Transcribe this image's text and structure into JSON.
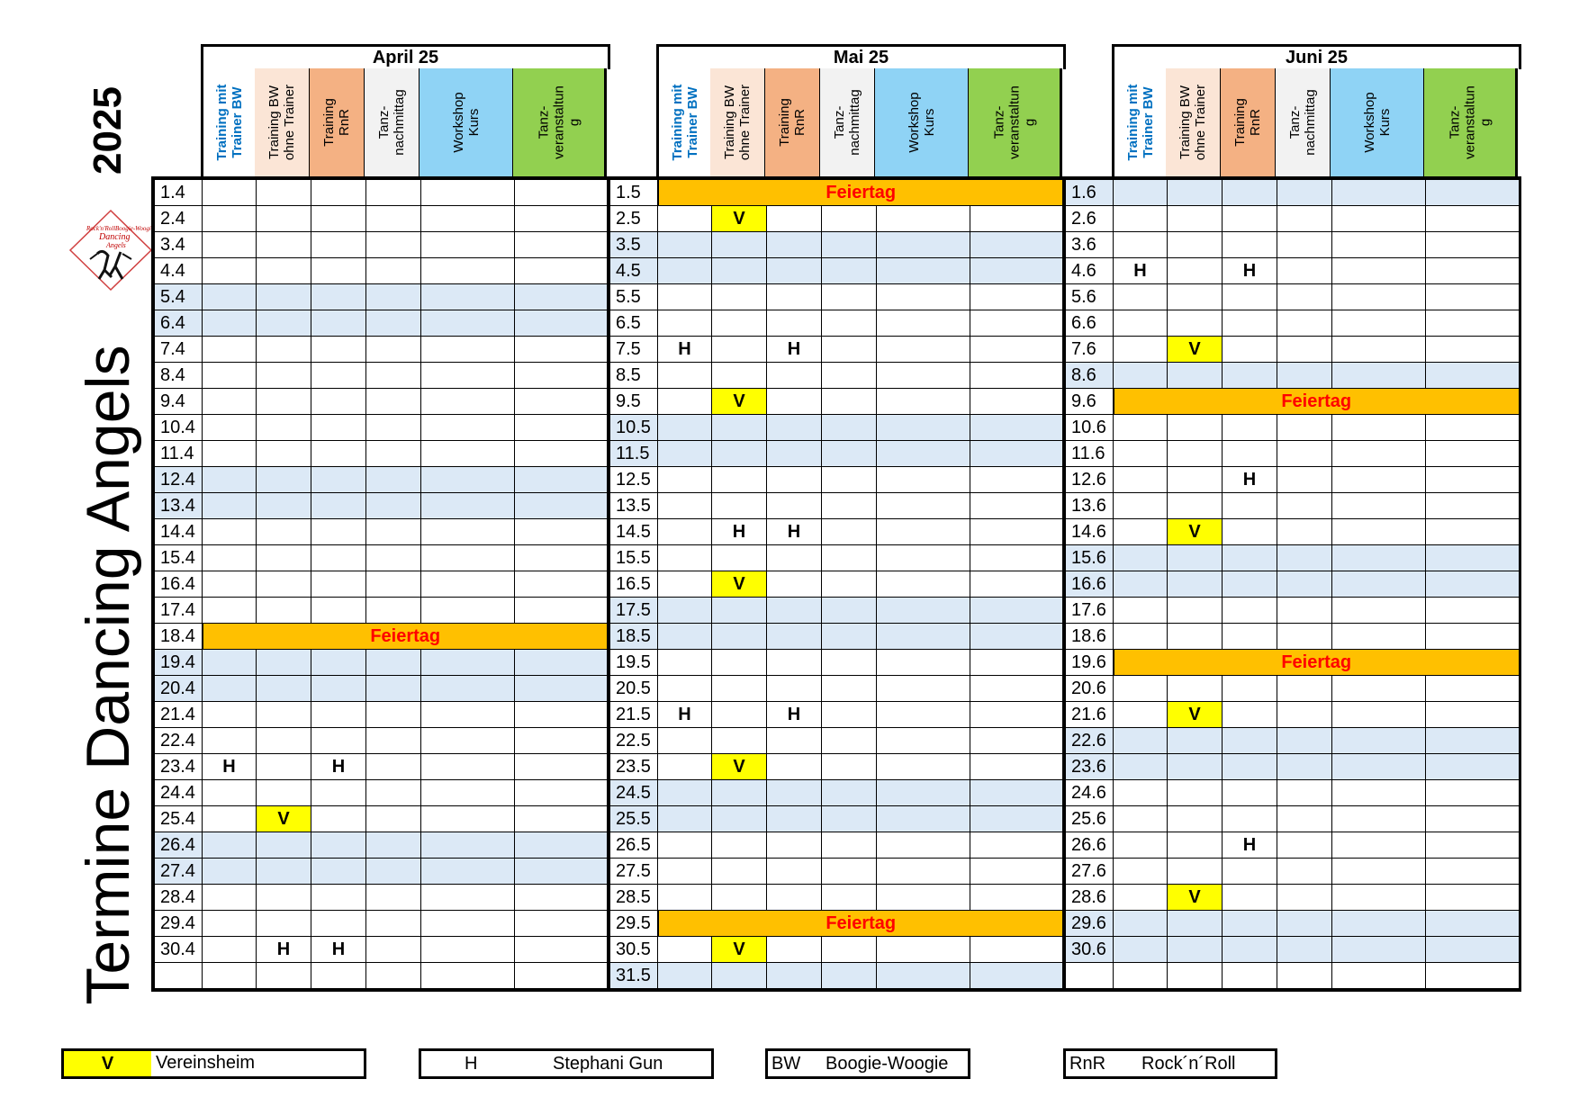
{
  "year": "2025",
  "title": "Termine Dancing Angels",
  "logo": {
    "lines": [
      "Rock'n'Roll",
      "Boogie-Woogie",
      "Dancing",
      "Angels"
    ]
  },
  "columns": [
    {
      "label": "Training mit\nTrainer BW",
      "bg": "#ffffff",
      "color": "#0070c0",
      "bold": true
    },
    {
      "label": "Training BW\nohne Trainer",
      "bg": "#fbe5d6",
      "color": "#000000",
      "bold": false
    },
    {
      "label": "Training\nRnR",
      "bg": "#f4b183",
      "color": "#000000",
      "bold": false
    },
    {
      "label": "Tanz-\nnachmittag",
      "bg": "#f2f2f2",
      "color": "#000000",
      "bold": false
    },
    {
      "label": "Workshop\nKurs",
      "bg": "#8fd3f5",
      "color": "#000000",
      "bold": false
    },
    {
      "label": "Tanz-\nveranstaltun\ng",
      "bg": "#92d050",
      "color": "#000000",
      "bold": false
    }
  ],
  "holiday_label": "Feiertag",
  "months": [
    {
      "name": "April 25",
      "rows": [
        {
          "d": "1.4",
          "c": [
            "",
            "",
            "",
            "",
            "",
            ""
          ]
        },
        {
          "d": "2.4",
          "c": [
            "",
            "",
            "",
            "",
            "",
            ""
          ]
        },
        {
          "d": "3.4",
          "c": [
            "",
            "",
            "",
            "",
            "",
            ""
          ]
        },
        {
          "d": "4.4",
          "c": [
            "",
            "",
            "",
            "",
            "",
            ""
          ]
        },
        {
          "d": "5.4",
          "w": true,
          "c": [
            "",
            "",
            "",
            "",
            "",
            ""
          ]
        },
        {
          "d": "6.4",
          "w": true,
          "c": [
            "",
            "",
            "",
            "",
            "",
            ""
          ]
        },
        {
          "d": "7.4",
          "c": [
            "",
            "",
            "",
            "",
            "",
            ""
          ]
        },
        {
          "d": "8.4",
          "c": [
            "",
            "",
            "",
            "",
            "",
            ""
          ]
        },
        {
          "d": "9.4",
          "c": [
            "",
            "",
            "",
            "",
            "",
            ""
          ]
        },
        {
          "d": "10.4",
          "c": [
            "",
            "",
            "",
            "",
            "",
            ""
          ]
        },
        {
          "d": "11.4",
          "c": [
            "",
            "",
            "",
            "",
            "",
            ""
          ]
        },
        {
          "d": "12.4",
          "w": true,
          "c": [
            "",
            "",
            "",
            "",
            "",
            ""
          ]
        },
        {
          "d": "13.4",
          "w": true,
          "c": [
            "",
            "",
            "",
            "",
            "",
            ""
          ]
        },
        {
          "d": "14.4",
          "c": [
            "",
            "",
            "",
            "",
            "",
            ""
          ]
        },
        {
          "d": "15.4",
          "c": [
            "",
            "",
            "",
            "",
            "",
            ""
          ]
        },
        {
          "d": "16.4",
          "c": [
            "",
            "",
            "",
            "",
            "",
            ""
          ]
        },
        {
          "d": "17.4",
          "c": [
            "",
            "",
            "",
            "",
            "",
            ""
          ]
        },
        {
          "d": "18.4",
          "hol": true
        },
        {
          "d": "19.4",
          "w": true,
          "c": [
            "",
            "",
            "",
            "",
            "",
            ""
          ]
        },
        {
          "d": "20.4",
          "w": true,
          "c": [
            "",
            "",
            "",
            "",
            "",
            ""
          ]
        },
        {
          "d": "21.4",
          "c": [
            "",
            "",
            "",
            "",
            "",
            ""
          ]
        },
        {
          "d": "22.4",
          "c": [
            "",
            "",
            "",
            "",
            "",
            ""
          ]
        },
        {
          "d": "23.4",
          "c": [
            "H",
            "",
            "H",
            "",
            "",
            ""
          ]
        },
        {
          "d": "24.4",
          "c": [
            "",
            "",
            "",
            "",
            "",
            ""
          ]
        },
        {
          "d": "25.4",
          "c": [
            "",
            "V",
            "",
            "",
            "",
            ""
          ]
        },
        {
          "d": "26.4",
          "w": true,
          "c": [
            "",
            "",
            "",
            "",
            "",
            ""
          ]
        },
        {
          "d": "27.4",
          "w": true,
          "c": [
            "",
            "",
            "",
            "",
            "",
            ""
          ]
        },
        {
          "d": "28.4",
          "c": [
            "",
            "",
            "",
            "",
            "",
            ""
          ]
        },
        {
          "d": "29.4",
          "c": [
            "",
            "",
            "",
            "",
            "",
            ""
          ]
        },
        {
          "d": "30.4",
          "c": [
            "",
            "H",
            "H",
            "",
            "",
            ""
          ]
        },
        {
          "d": "",
          "c": [
            "",
            "",
            "",
            "",
            "",
            ""
          ]
        }
      ]
    },
    {
      "name": "Mai 25",
      "rows": [
        {
          "d": "1.5",
          "hol": true
        },
        {
          "d": "2.5",
          "c": [
            "",
            "V",
            "",
            "",
            "",
            ""
          ]
        },
        {
          "d": "3.5",
          "w": true,
          "c": [
            "",
            "",
            "",
            "",
            "",
            ""
          ]
        },
        {
          "d": "4.5",
          "w": true,
          "c": [
            "",
            "",
            "",
            "",
            "",
            ""
          ]
        },
        {
          "d": "5.5",
          "c": [
            "",
            "",
            "",
            "",
            "",
            ""
          ]
        },
        {
          "d": "6.5",
          "c": [
            "",
            "",
            "",
            "",
            "",
            ""
          ]
        },
        {
          "d": "7.5",
          "c": [
            "H",
            "",
            "H",
            "",
            "",
            ""
          ]
        },
        {
          "d": "8.5",
          "c": [
            "",
            "",
            "",
            "",
            "",
            ""
          ]
        },
        {
          "d": "9.5",
          "c": [
            "",
            "V",
            "",
            "",
            "",
            ""
          ]
        },
        {
          "d": "10.5",
          "w": true,
          "c": [
            "",
            "",
            "",
            "",
            "",
            ""
          ]
        },
        {
          "d": "11.5",
          "w": true,
          "c": [
            "",
            "",
            "",
            "",
            "",
            ""
          ]
        },
        {
          "d": "12.5",
          "c": [
            "",
            "",
            "",
            "",
            "",
            ""
          ]
        },
        {
          "d": "13.5",
          "c": [
            "",
            "",
            "",
            "",
            "",
            ""
          ]
        },
        {
          "d": "14.5",
          "c": [
            "",
            "H",
            "H",
            "",
            "",
            ""
          ]
        },
        {
          "d": "15.5",
          "c": [
            "",
            "",
            "",
            "",
            "",
            ""
          ]
        },
        {
          "d": "16.5",
          "c": [
            "",
            "V",
            "",
            "",
            "",
            ""
          ]
        },
        {
          "d": "17.5",
          "w": true,
          "c": [
            "",
            "",
            "",
            "",
            "",
            ""
          ]
        },
        {
          "d": "18.5",
          "w": true,
          "c": [
            "",
            "",
            "",
            "",
            "",
            ""
          ]
        },
        {
          "d": "19.5",
          "c": [
            "",
            "",
            "",
            "",
            "",
            ""
          ]
        },
        {
          "d": "20.5",
          "c": [
            "",
            "",
            "",
            "",
            "",
            ""
          ]
        },
        {
          "d": "21.5",
          "c": [
            "H",
            "",
            "H",
            "",
            "",
            ""
          ]
        },
        {
          "d": "22.5",
          "c": [
            "",
            "",
            "",
            "",
            "",
            ""
          ]
        },
        {
          "d": "23.5",
          "c": [
            "",
            "V",
            "",
            "",
            "",
            ""
          ]
        },
        {
          "d": "24.5",
          "w": true,
          "c": [
            "",
            "",
            "",
            "",
            "",
            ""
          ]
        },
        {
          "d": "25.5",
          "w": true,
          "c": [
            "",
            "",
            "",
            "",
            "",
            ""
          ]
        },
        {
          "d": "26.5",
          "c": [
            "",
            "",
            "",
            "",
            "",
            ""
          ]
        },
        {
          "d": "27.5",
          "c": [
            "",
            "",
            "",
            "",
            "",
            ""
          ]
        },
        {
          "d": "28.5",
          "c": [
            "",
            "",
            "",
            "",
            "",
            ""
          ]
        },
        {
          "d": "29.5",
          "hol": true
        },
        {
          "d": "30.5",
          "c": [
            "",
            "V",
            "",
            "",
            "",
            ""
          ]
        },
        {
          "d": "31.5",
          "w": true,
          "c": [
            "",
            "",
            "",
            "",
            "",
            ""
          ]
        }
      ]
    },
    {
      "name": "Juni 25",
      "rows": [
        {
          "d": "1.6",
          "w": true,
          "c": [
            "",
            "",
            "",
            "",
            "",
            ""
          ]
        },
        {
          "d": "2.6",
          "c": [
            "",
            "",
            "",
            "",
            "",
            ""
          ]
        },
        {
          "d": "3.6",
          "c": [
            "",
            "",
            "",
            "",
            "",
            ""
          ]
        },
        {
          "d": "4.6",
          "c": [
            "H",
            "",
            "H",
            "",
            "",
            ""
          ]
        },
        {
          "d": "5.6",
          "c": [
            "",
            "",
            "",
            "",
            "",
            ""
          ]
        },
        {
          "d": "6.6",
          "c": [
            "",
            "",
            "",
            "",
            "",
            ""
          ]
        },
        {
          "d": "7.6",
          "c": [
            "",
            "V",
            "",
            "",
            "",
            ""
          ]
        },
        {
          "d": "8.6",
          "w": true,
          "c": [
            "",
            "",
            "",
            "",
            "",
            ""
          ]
        },
        {
          "d": "9.6",
          "hol": true
        },
        {
          "d": "10.6",
          "c": [
            "",
            "",
            "",
            "",
            "",
            ""
          ]
        },
        {
          "d": "11.6",
          "c": [
            "",
            "",
            "",
            "",
            "",
            ""
          ]
        },
        {
          "d": "12.6",
          "c": [
            "",
            "",
            "H",
            "",
            "",
            ""
          ]
        },
        {
          "d": "13.6",
          "c": [
            "",
            "",
            "",
            "",
            "",
            ""
          ]
        },
        {
          "d": "14.6",
          "c": [
            "",
            "V",
            "",
            "",
            "",
            ""
          ]
        },
        {
          "d": "15.6",
          "w": true,
          "c": [
            "",
            "",
            "",
            "",
            "",
            ""
          ]
        },
        {
          "d": "16.6",
          "w": true,
          "c": [
            "",
            "",
            "",
            "",
            "",
            ""
          ]
        },
        {
          "d": "17.6",
          "c": [
            "",
            "",
            "",
            "",
            "",
            ""
          ]
        },
        {
          "d": "18.6",
          "c": [
            "",
            "",
            "",
            "",
            "",
            ""
          ]
        },
        {
          "d": "19.6",
          "hol": true
        },
        {
          "d": "20.6",
          "c": [
            "",
            "",
            "",
            "",
            "",
            ""
          ]
        },
        {
          "d": "21.6",
          "c": [
            "",
            "V",
            "",
            "",
            "",
            ""
          ]
        },
        {
          "d": "22.6",
          "w": true,
          "c": [
            "",
            "",
            "",
            "",
            "",
            ""
          ]
        },
        {
          "d": "23.6",
          "w": true,
          "c": [
            "",
            "",
            "",
            "",
            "",
            ""
          ]
        },
        {
          "d": "24.6",
          "c": [
            "",
            "",
            "",
            "",
            "",
            ""
          ]
        },
        {
          "d": "25.6",
          "c": [
            "",
            "",
            "",
            "",
            "",
            ""
          ]
        },
        {
          "d": "26.6",
          "c": [
            "",
            "",
            "H",
            "",
            "",
            ""
          ]
        },
        {
          "d": "27.6",
          "c": [
            "",
            "",
            "",
            "",
            "",
            ""
          ]
        },
        {
          "d": "28.6",
          "c": [
            "",
            "V",
            "",
            "",
            "",
            ""
          ]
        },
        {
          "d": "29.6",
          "w": true,
          "c": [
            "",
            "",
            "",
            "",
            "",
            ""
          ]
        },
        {
          "d": "30.6",
          "w": true,
          "c": [
            "",
            "",
            "",
            "",
            "",
            ""
          ]
        },
        {
          "d": "",
          "c": [
            "",
            "",
            "",
            "",
            "",
            ""
          ]
        }
      ]
    }
  ],
  "legend": [
    {
      "key": "V",
      "text": "Vereinsheim"
    },
    {
      "key": "H",
      "text": "Stephani Gun"
    },
    {
      "key": "BW",
      "text": "Boogie-Woogie"
    },
    {
      "key": "RnR",
      "text": "Rock´n´Roll"
    }
  ],
  "colors": {
    "weekend": "#dce9f6",
    "holiday": "#ffc000",
    "holiday_text": "#ff0000",
    "venue": "#ffff00"
  }
}
